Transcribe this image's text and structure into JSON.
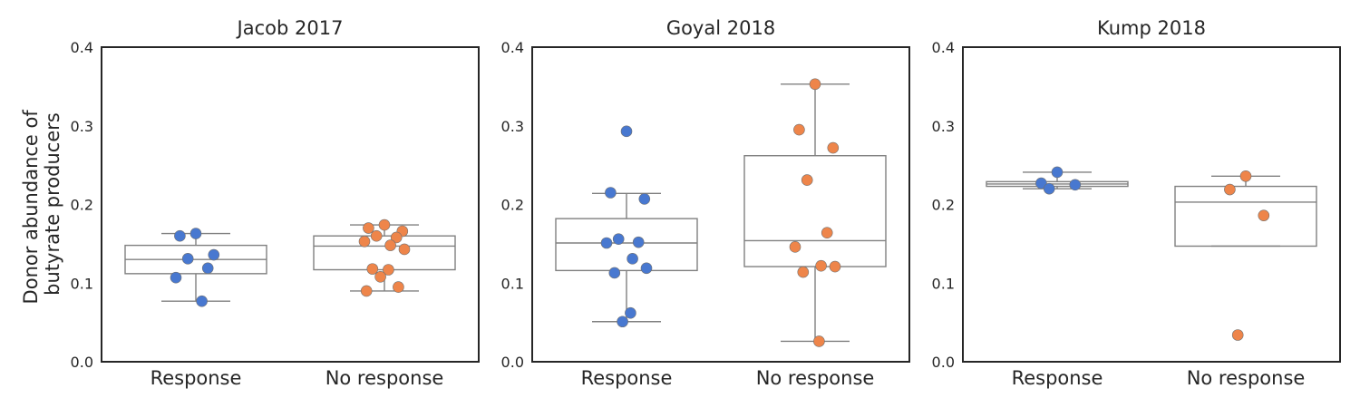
{
  "ylabel_lines": [
    "Donor abundance of",
    "butyrate producers"
  ],
  "colors": {
    "Response": "#4878d0",
    "No response": "#ee854a",
    "box": "#808080",
    "frame": "#262626"
  },
  "chart_data": [
    {
      "type": "box+strip",
      "title": "Jacob 2017",
      "categories": [
        "Response",
        "No response"
      ],
      "ylim": [
        0,
        0.4
      ],
      "yticks": [
        "0.0",
        "0.1",
        "0.2",
        "0.3",
        "0.4"
      ],
      "grid": false,
      "boxes": [
        {
          "category": "Response",
          "whisker_low": 0.077,
          "q1": 0.112,
          "median": 0.13,
          "q3": 0.148,
          "whisker_high": 0.163
        },
        {
          "category": "No response",
          "whisker_low": 0.09,
          "q1": 0.117,
          "median": 0.147,
          "q3": 0.16,
          "whisker_high": 0.174
        }
      ],
      "points": [
        {
          "category": "Response",
          "values": [
            0.163,
            0.16,
            0.136,
            0.131,
            0.119,
            0.107,
            0.077
          ]
        },
        {
          "category": "No response",
          "values": [
            0.174,
            0.17,
            0.166,
            0.16,
            0.158,
            0.153,
            0.148,
            0.143,
            0.118,
            0.117,
            0.108,
            0.095,
            0.09
          ]
        }
      ]
    },
    {
      "type": "box+strip",
      "title": "Goyal 2018",
      "categories": [
        "Response",
        "No response"
      ],
      "ylim": [
        0,
        0.4
      ],
      "yticks": [
        "0.0",
        "0.1",
        "0.2",
        "0.3",
        "0.4"
      ],
      "grid": false,
      "boxes": [
        {
          "category": "Response",
          "whisker_low": 0.051,
          "q1": 0.116,
          "median": 0.151,
          "q3": 0.182,
          "whisker_high": 0.214
        },
        {
          "category": "No response",
          "whisker_low": 0.026,
          "q1": 0.121,
          "median": 0.154,
          "q3": 0.262,
          "whisker_high": 0.353
        }
      ],
      "points": [
        {
          "category": "Response",
          "values": [
            0.293,
            0.215,
            0.207,
            0.156,
            0.152,
            0.151,
            0.131,
            0.119,
            0.113,
            0.062,
            0.051
          ]
        },
        {
          "category": "No response",
          "values": [
            0.353,
            0.295,
            0.272,
            0.231,
            0.164,
            0.146,
            0.122,
            0.121,
            0.114,
            0.026
          ]
        }
      ]
    },
    {
      "type": "box+strip",
      "title": "Kump 2018",
      "categories": [
        "Response",
        "No response"
      ],
      "ylim": [
        0,
        0.4
      ],
      "yticks": [
        "0.0",
        "0.1",
        "0.2",
        "0.3",
        "0.4"
      ],
      "grid": false,
      "boxes": [
        {
          "category": "Response",
          "whisker_low": 0.22,
          "q1": 0.223,
          "median": 0.226,
          "q3": 0.229,
          "whisker_high": 0.241
        },
        {
          "category": "No response",
          "whisker_low": 0.147,
          "q1": 0.147,
          "median": 0.203,
          "q3": 0.223,
          "whisker_high": 0.236
        }
      ],
      "points": [
        {
          "category": "Response",
          "values": [
            0.241,
            0.227,
            0.225,
            0.22
          ]
        },
        {
          "category": "No response",
          "values": [
            0.236,
            0.219,
            0.186,
            0.034
          ]
        }
      ]
    }
  ]
}
